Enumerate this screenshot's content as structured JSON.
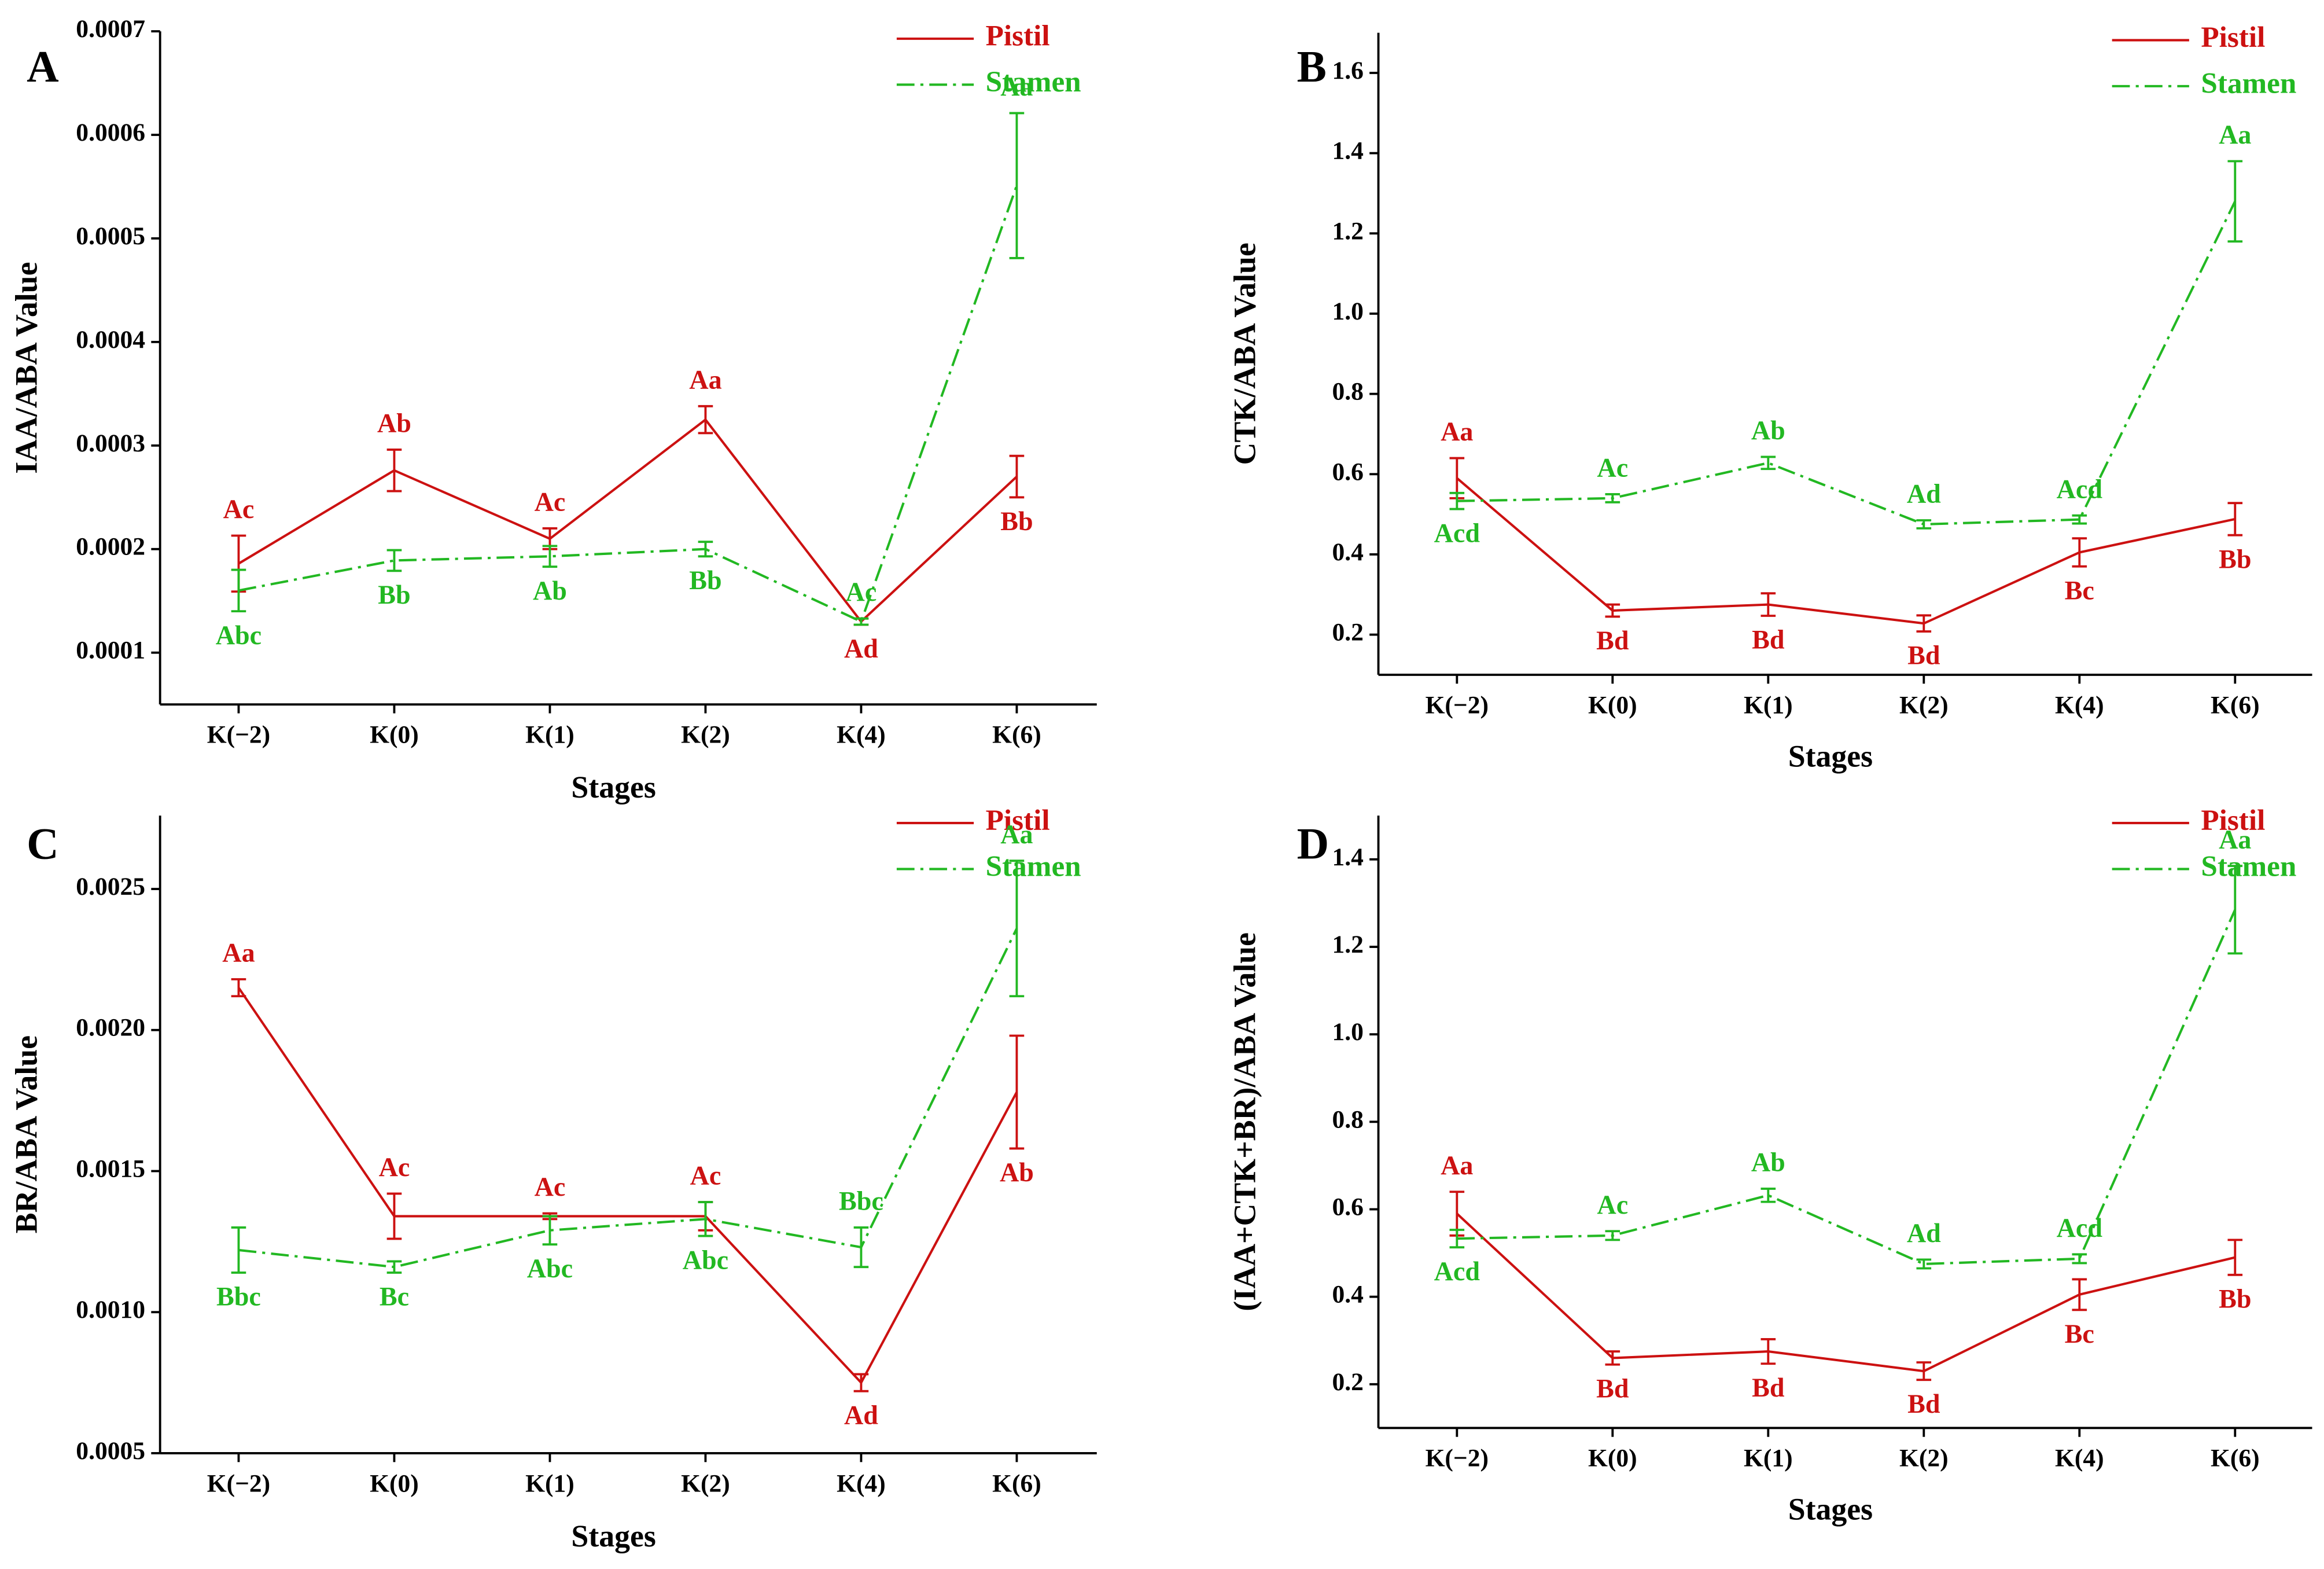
{
  "chart_data": [
    {
      "type": "line",
      "title": "A",
      "y_label": "IAA/ABA Value",
      "x_label": "Stages",
      "categories": [
        "K(−2)",
        "K(0)",
        "K(1)",
        "K(2)",
        "K(4)",
        "K(6)"
      ],
      "ylim": [
        5e-05,
        0.0007
      ],
      "yticks": [
        0.0001,
        0.0002,
        0.0003,
        0.0004,
        0.0005,
        0.0006,
        0.0007
      ],
      "legend_corner": "top-right",
      "series": [
        {
          "name": "Pistil",
          "color": "#cc1111",
          "values": [
            0.000186,
            0.000276,
            0.00021,
            0.000325,
            0.00013,
            0.00027
          ],
          "errors": [
            2.7e-05,
            2e-05,
            1e-05,
            1.3e-05,
            3e-06,
            2e-05
          ],
          "annotations": [
            "Ac",
            "Ab",
            "Ac",
            "Aa",
            "Ad",
            "Bb"
          ]
        },
        {
          "name": "Stamen",
          "color": "#22b822",
          "dash": true,
          "values": [
            0.00016,
            0.000189,
            0.000193,
            0.0002,
            0.00013,
            0.000551
          ],
          "errors": [
            2e-05,
            1e-05,
            1e-05,
            7e-06,
            3e-06,
            7e-05
          ],
          "annotations": [
            "Abc",
            "Bb",
            "Ab",
            "Bb",
            "Ac",
            "Aa"
          ]
        }
      ]
    },
    {
      "type": "line",
      "title": "B",
      "y_label": "CTK/ABA Value",
      "x_label": "Stages",
      "categories": [
        "K(−2)",
        "K(0)",
        "K(1)",
        "K(2)",
        "K(4)",
        "K(6)"
      ],
      "ylim": [
        0.1,
        1.7
      ],
      "yticks": [
        0.2,
        0.4,
        0.6,
        0.8,
        {
          "value": 1,
          "label": "1.0"
        },
        1.2,
        1.4,
        1.6
      ],
      "legend_corner": "top-right",
      "series": [
        {
          "name": "Pistil",
          "color": "#cc1111",
          "values": [
            0.59,
            0.26,
            0.275,
            0.228,
            0.405,
            0.488
          ],
          "errors": [
            0.05,
            0.015,
            0.028,
            0.02,
            0.035,
            0.04
          ],
          "annotations": [
            "Aa",
            "Bd",
            "Bd",
            "Bd",
            "Bc",
            "Bb"
          ]
        },
        {
          "name": "Stamen",
          "color": "#22b822",
          "dash": true,
          "values": [
            0.533,
            0.54,
            0.628,
            0.475,
            0.487,
            1.28
          ],
          "errors": [
            0.02,
            0.01,
            0.015,
            0.01,
            0.01,
            0.1
          ],
          "annotations": [
            "Acd",
            "Ac",
            "Ab",
            "Ad",
            "Acd",
            "Aa"
          ]
        }
      ]
    },
    {
      "type": "line",
      "title": "C",
      "y_label": "BR/ABA Value",
      "x_label": "Stages",
      "categories": [
        "K(−2)",
        "K(0)",
        "K(1)",
        "K(2)",
        "K(4)",
        "K(6)"
      ],
      "ylim": [
        0.0005,
        0.00276
      ],
      "yticks": [
        0.0005,
        {
          "value": 0.001,
          "label": "0.0010"
        },
        0.0015,
        {
          "value": 0.002,
          "label": "0.0020"
        },
        0.0025
      ],
      "legend_corner": "top-right",
      "series": [
        {
          "name": "Pistil",
          "color": "#cc1111",
          "values": [
            0.00215,
            0.00134,
            0.00134,
            0.00134,
            0.00075,
            0.00178
          ],
          "errors": [
            3e-05,
            8e-05,
            1e-05,
            5e-05,
            3e-05,
            0.0002
          ],
          "annotations": [
            "Aa",
            "Ac",
            "Ac",
            "Ac",
            "Ad",
            "Ab"
          ]
        },
        {
          "name": "Stamen",
          "color": "#22b822",
          "dash": true,
          "values": [
            0.00122,
            0.00116,
            0.00129,
            0.00133,
            0.00123,
            0.00236
          ],
          "errors": [
            8e-05,
            2e-05,
            5e-05,
            6e-05,
            7e-05,
            0.00024
          ],
          "annotations": [
            "Bbc",
            "Bc",
            "Abc",
            "Abc",
            "Bbc",
            "Aa"
          ]
        }
      ]
    },
    {
      "type": "line",
      "title": "D",
      "y_label": "(IAA+CTK+BR)/ABA Value",
      "x_label": "Stages",
      "categories": [
        "K(−2)",
        "K(0)",
        "K(1)",
        "K(2)",
        "K(4)",
        "K(6)"
      ],
      "ylim": [
        0.1,
        1.5
      ],
      "yticks": [
        0.2,
        0.4,
        0.6,
        0.8,
        {
          "value": 1,
          "label": "1.0"
        },
        1.2,
        1.4
      ],
      "legend_corner": "top-right",
      "series": [
        {
          "name": "Pistil",
          "color": "#cc1111",
          "values": [
            0.59,
            0.26,
            0.275,
            0.23,
            0.405,
            0.49
          ],
          "errors": [
            0.05,
            0.015,
            0.028,
            0.02,
            0.035,
            0.04
          ],
          "annotations": [
            "Aa",
            "Bd",
            "Bd",
            "Bd",
            "Bc",
            "Bb"
          ]
        },
        {
          "name": "Stamen",
          "color": "#22b822",
          "dash": true,
          "values": [
            0.533,
            0.54,
            0.632,
            0.475,
            0.487,
            1.285
          ],
          "errors": [
            0.02,
            0.01,
            0.015,
            0.01,
            0.01,
            0.1
          ],
          "annotations": [
            "Acd",
            "Ac",
            "Ab",
            "Ad",
            "Acd",
            "Aa"
          ]
        }
      ]
    }
  ]
}
